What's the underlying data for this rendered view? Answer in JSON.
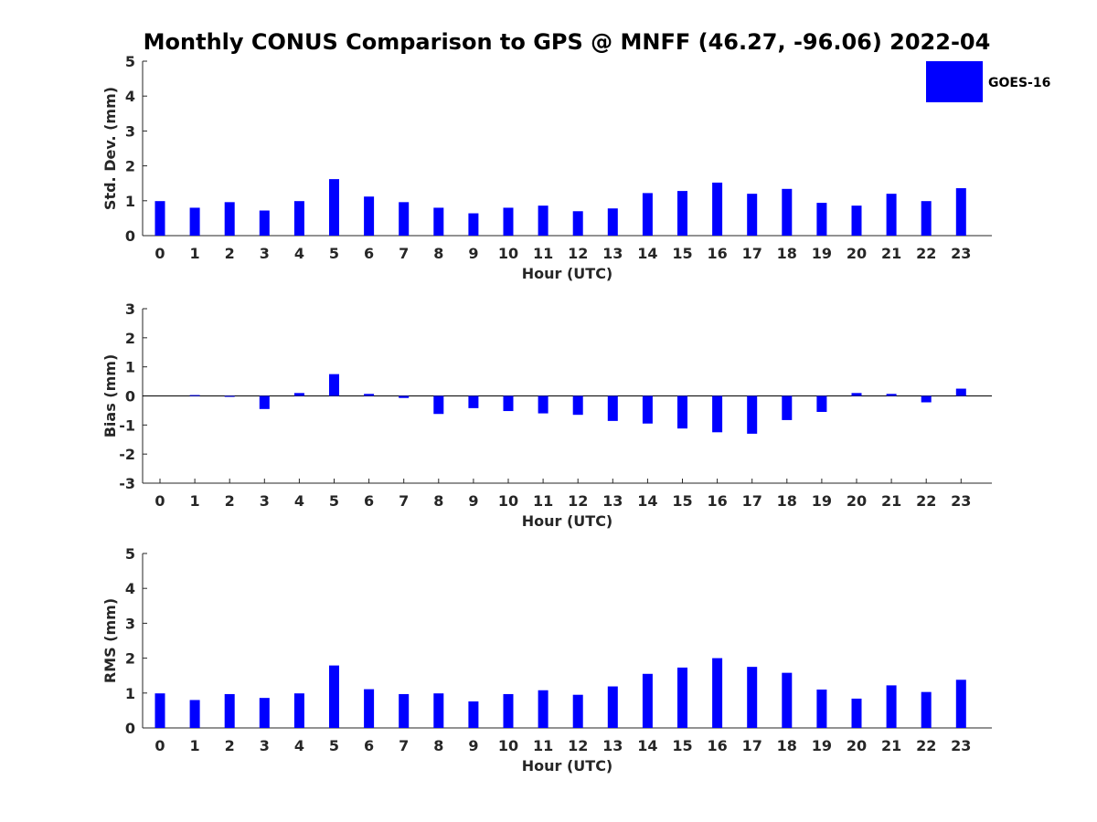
{
  "chart_data": {
    "type": "bar",
    "title": "Monthly CONUS Comparison to GPS @ MNFF (46.27, -96.06) 2022-04",
    "legend": {
      "entries": [
        "GOES-16"
      ],
      "placement": "top-right",
      "color": "#0000ff"
    },
    "bar_color": "#0000ff",
    "categories": [
      "0",
      "1",
      "2",
      "3",
      "4",
      "5",
      "6",
      "7",
      "8",
      "9",
      "10",
      "11",
      "12",
      "13",
      "14",
      "15",
      "16",
      "17",
      "18",
      "19",
      "20",
      "21",
      "22",
      "23"
    ],
    "panels": [
      {
        "ylabel": "Std. Dev. (mm)",
        "xlabel": "Hour (UTC)",
        "ylim": [
          0,
          5
        ],
        "yticks": [
          0,
          1,
          2,
          3,
          4,
          5
        ],
        "series": [
          {
            "name": "GOES-16",
            "values": [
              0.99,
              0.8,
              0.96,
              0.72,
              0.99,
              1.62,
              1.12,
              0.96,
              0.8,
              0.64,
              0.8,
              0.86,
              0.7,
              0.78,
              1.22,
              1.28,
              1.52,
              1.2,
              1.34,
              0.94,
              0.86,
              1.2,
              0.99,
              1.36
            ]
          }
        ]
      },
      {
        "ylabel": "Bias (mm)",
        "xlabel": "Hour (UTC)",
        "ylim": [
          -3,
          3
        ],
        "yticks": [
          -3,
          -2,
          -1,
          0,
          1,
          2,
          3
        ],
        "series": [
          {
            "name": "GOES-16",
            "values": [
              0.0,
              0.03,
              -0.03,
              -0.45,
              0.1,
              0.75,
              0.07,
              -0.07,
              -0.62,
              -0.42,
              -0.52,
              -0.6,
              -0.65,
              -0.86,
              -0.95,
              -1.12,
              -1.25,
              -1.3,
              -0.83,
              -0.55,
              0.1,
              0.07,
              -0.22,
              0.25
            ]
          }
        ]
      },
      {
        "ylabel": "RMS (mm)",
        "xlabel": "Hour (UTC)",
        "ylim": [
          0,
          5
        ],
        "yticks": [
          0,
          1,
          2,
          3,
          4,
          5
        ],
        "series": [
          {
            "name": "GOES-16",
            "values": [
              0.99,
              0.8,
              0.97,
              0.86,
              0.99,
              1.79,
              1.11,
              0.97,
              0.99,
              0.76,
              0.97,
              1.08,
              0.95,
              1.19,
              1.55,
              1.73,
              2.0,
              1.75,
              1.58,
              1.1,
              0.84,
              1.22,
              1.03,
              1.38
            ]
          }
        ]
      }
    ]
  }
}
